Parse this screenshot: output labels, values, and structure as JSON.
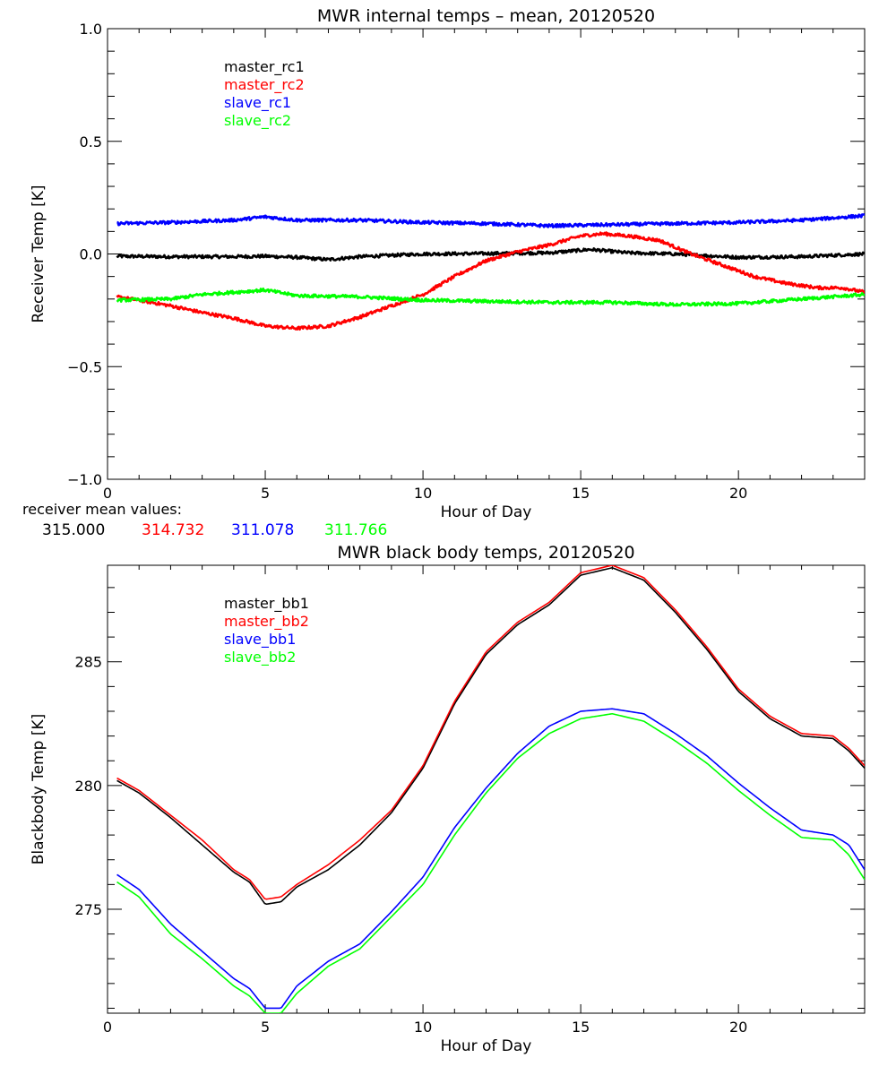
{
  "chart_data": [
    {
      "type": "line",
      "title": "MWR internal temps – mean, 20120520",
      "xlabel": "Hour of Day",
      "ylabel": "Receiver Temp [K]",
      "xlim": [
        0,
        24
      ],
      "ylim": [
        -1.0,
        1.0
      ],
      "xticks": [
        0,
        5,
        10,
        15,
        20
      ],
      "yticks": [
        -1.0,
        -0.5,
        0.0,
        0.5,
        1.0
      ],
      "ytick_labels": [
        "−1.0",
        "−0.5",
        "0.0",
        "0.5",
        "1.0"
      ],
      "grid": false,
      "legend": "top-left",
      "noise": 0.007,
      "series": [
        {
          "name": "master_rc1",
          "color": "#000000",
          "x": [
            0.3,
            2,
            4,
            5,
            6,
            7,
            8,
            10,
            12,
            14,
            15.3,
            16.5,
            18,
            20,
            22,
            24
          ],
          "y": [
            -0.01,
            -0.012,
            -0.012,
            -0.01,
            -0.015,
            -0.025,
            -0.012,
            0.0,
            0.002,
            0.005,
            0.02,
            0.005,
            0.0,
            -0.015,
            -0.012,
            0.0
          ]
        },
        {
          "name": "master_rc2",
          "color": "#ff0000",
          "x": [
            0.3,
            1,
            2,
            3,
            4,
            5,
            6,
            7,
            8,
            9,
            10,
            11,
            12,
            13,
            14,
            15,
            15.7,
            16.5,
            17.5,
            18.5,
            19.5,
            20.5,
            21.5,
            22.5,
            23.3,
            24
          ],
          "y": [
            -0.19,
            -0.205,
            -0.23,
            -0.26,
            -0.285,
            -0.32,
            -0.33,
            -0.32,
            -0.28,
            -0.23,
            -0.18,
            -0.1,
            -0.03,
            0.01,
            0.04,
            0.08,
            0.09,
            0.08,
            0.06,
            0.0,
            -0.05,
            -0.1,
            -0.13,
            -0.15,
            -0.15,
            -0.17
          ]
        },
        {
          "name": "slave_rc1",
          "color": "#0000ff",
          "x": [
            0.3,
            2,
            4,
            5,
            6,
            8,
            10,
            12,
            14,
            16,
            18,
            20,
            22,
            24
          ],
          "y": [
            0.135,
            0.14,
            0.15,
            0.165,
            0.15,
            0.15,
            0.14,
            0.135,
            0.125,
            0.13,
            0.135,
            0.14,
            0.15,
            0.17
          ]
        },
        {
          "name": "slave_rc2",
          "color": "#00ff00",
          "x": [
            0.3,
            2,
            3,
            4,
            5,
            6,
            8,
            10,
            12,
            14,
            16,
            18,
            20,
            22,
            24
          ],
          "y": [
            -0.205,
            -0.2,
            -0.18,
            -0.17,
            -0.16,
            -0.185,
            -0.19,
            -0.205,
            -0.21,
            -0.215,
            -0.215,
            -0.225,
            -0.22,
            -0.2,
            -0.18
          ]
        }
      ]
    },
    {
      "type": "line",
      "title": "MWR black body temps, 20120520",
      "xlabel": "Hour of Day",
      "ylabel": "Blackbody Temp [K]",
      "xlim": [
        0,
        24
      ],
      "ylim": [
        270.8,
        288.9
      ],
      "xticks": [
        0,
        5,
        10,
        15,
        20
      ],
      "yticks": [
        275,
        280,
        285
      ],
      "ytick_labels": [
        "275",
        "280",
        "285"
      ],
      "grid": false,
      "legend": "top-left",
      "noise": 0,
      "series": [
        {
          "name": "master_bb1",
          "color": "#000000",
          "x": [
            0.3,
            1,
            2,
            3,
            4,
            4.5,
            5,
            5.5,
            6,
            7,
            8,
            9,
            10,
            11,
            12,
            13,
            14,
            15,
            16,
            17,
            18,
            19,
            20,
            21,
            22,
            23,
            23.5,
            24
          ],
          "y": [
            280.2,
            279.7,
            278.7,
            277.6,
            276.5,
            276.1,
            275.2,
            275.3,
            275.9,
            276.6,
            277.6,
            278.9,
            280.7,
            283.3,
            285.3,
            286.5,
            287.3,
            288.5,
            288.8,
            288.3,
            287.0,
            285.5,
            283.8,
            282.7,
            282.0,
            281.9,
            281.4,
            280.7
          ]
        },
        {
          "name": "master_bb2",
          "color": "#ff0000",
          "x": [
            0.3,
            1,
            2,
            3,
            4,
            4.5,
            5,
            5.5,
            6,
            7,
            8,
            9,
            10,
            11,
            12,
            13,
            14,
            15,
            16,
            17,
            18,
            19,
            20,
            21,
            22,
            23,
            23.5,
            24
          ],
          "y": [
            280.3,
            279.8,
            278.8,
            277.8,
            276.6,
            276.2,
            275.4,
            275.5,
            276.0,
            276.8,
            277.8,
            279.0,
            280.8,
            283.4,
            285.4,
            286.6,
            287.4,
            288.6,
            288.9,
            288.4,
            287.1,
            285.6,
            283.9,
            282.8,
            282.1,
            282.0,
            281.5,
            280.8
          ]
        },
        {
          "name": "slave_bb1",
          "color": "#0000ff",
          "x": [
            0.3,
            1,
            2,
            3,
            4,
            4.5,
            5,
            5.5,
            6,
            7,
            8,
            9,
            10,
            11,
            12,
            13,
            14,
            15,
            16,
            17,
            18,
            19,
            20,
            21,
            22,
            23,
            23.5,
            24
          ],
          "y": [
            276.4,
            275.8,
            274.4,
            273.3,
            272.2,
            271.8,
            271.0,
            271.0,
            271.9,
            272.9,
            273.6,
            274.9,
            276.3,
            278.3,
            279.9,
            281.3,
            282.4,
            283.0,
            283.1,
            282.9,
            282.1,
            281.2,
            280.1,
            279.1,
            278.2,
            278.0,
            277.6,
            276.6
          ]
        },
        {
          "name": "slave_bb2",
          "color": "#00ff00",
          "x": [
            0.3,
            1,
            2,
            3,
            4,
            4.5,
            5,
            5.5,
            6,
            7,
            8,
            9,
            10,
            11,
            12,
            13,
            14,
            15,
            16,
            17,
            18,
            19,
            20,
            21,
            22,
            23,
            23.5,
            24
          ],
          "y": [
            276.1,
            275.5,
            274.0,
            273.0,
            271.9,
            271.5,
            270.8,
            270.8,
            271.6,
            272.7,
            273.4,
            274.7,
            276.0,
            278.0,
            279.7,
            281.1,
            282.1,
            282.7,
            282.9,
            282.6,
            281.8,
            280.9,
            279.8,
            278.8,
            277.9,
            277.8,
            277.2,
            276.2
          ]
        }
      ]
    }
  ],
  "annotation": {
    "label": "receiver mean values:",
    "values": [
      {
        "text": "315.000",
        "color": "#000000"
      },
      {
        "text": "314.732",
        "color": "#ff0000"
      },
      {
        "text": "311.078",
        "color": "#0000ff"
      },
      {
        "text": "311.766",
        "color": "#00ff00"
      }
    ]
  }
}
